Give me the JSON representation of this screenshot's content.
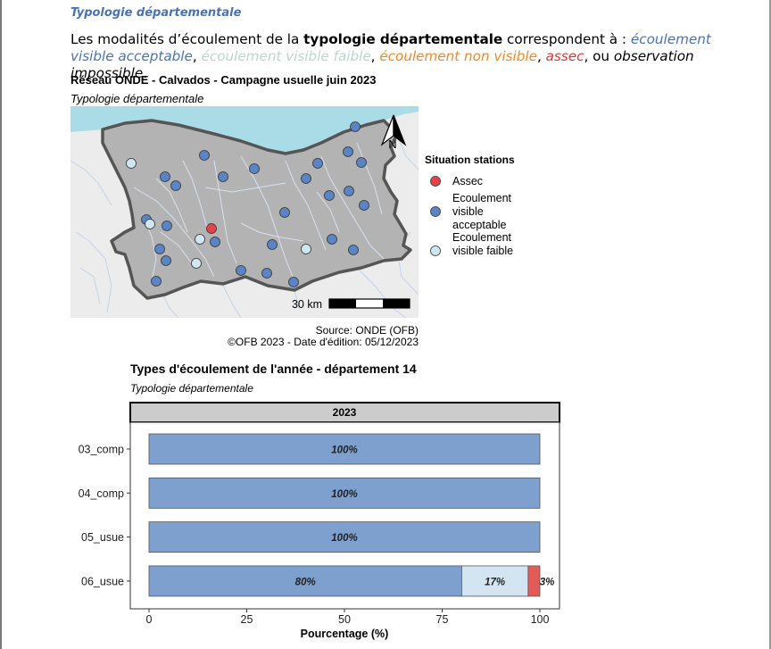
{
  "section_heading": "Typologie départementale",
  "intro": {
    "p1": "Les modalités d’écoulement de la ",
    "p2": "typologie départementale",
    "p3": " correspondent à : ",
    "m1": "écoulement visible acceptable",
    "s1": ", ",
    "m2": "écoulement visible faible",
    "s2": ", ",
    "m3": "écoulement non visible",
    "s3": ", ",
    "m4": "assec",
    "s4": ", ou ",
    "m5": "observation impossible",
    "end": "."
  },
  "map": {
    "title": "Réseau ONDE - Calvados - Campagne usuelle juin 2023",
    "subtitle": "Typologie départementale",
    "north_label": "N",
    "scale_label": "30 km",
    "source": "Source: ONDE (OFB)",
    "copyright": "©OFB 2023 - Date d'édition: 05/12/2023",
    "legend": {
      "title": "Situation stations",
      "items": [
        {
          "label": "Assec",
          "color": "#e5434a"
        },
        {
          "label": "Ecoulement visible acceptable",
          "color": "#5b84c5"
        },
        {
          "label": "Ecoulement visible faible",
          "color": "#d0e6f2"
        }
      ]
    },
    "colors": {
      "sea": "#aadce8",
      "land": "#b3b3b3",
      "outside": "#ececec",
      "rivers": "#c5d3e8",
      "border": "#555555"
    }
  },
  "chart_data": {
    "type": "bar",
    "orientation": "horizontal",
    "stacked": true,
    "title": "Types d'écoulement de l'année - département 14",
    "subtitle": "Typologie départementale",
    "facet": "2023",
    "xlabel": "Pourcentage (%)",
    "xlim": [
      0,
      100
    ],
    "xticks": [
      0,
      25,
      50,
      75,
      100
    ],
    "categories": [
      "03_comp",
      "04_comp",
      "05_usue",
      "06_usue"
    ],
    "series": [
      {
        "color": "#7ea0cf",
        "values": [
          100,
          100,
          100,
          80
        ],
        "labels": [
          "100%",
          "100%",
          "100%",
          "80%"
        ]
      },
      {
        "color": "#d4e5f2",
        "values": [
          0,
          0,
          0,
          17
        ],
        "labels": [
          "",
          "",
          "",
          "17%"
        ]
      },
      {
        "color": "#e25b57",
        "values": [
          0,
          0,
          0,
          3
        ],
        "labels": [
          "",
          "",
          "",
          "3%"
        ]
      }
    ]
  }
}
